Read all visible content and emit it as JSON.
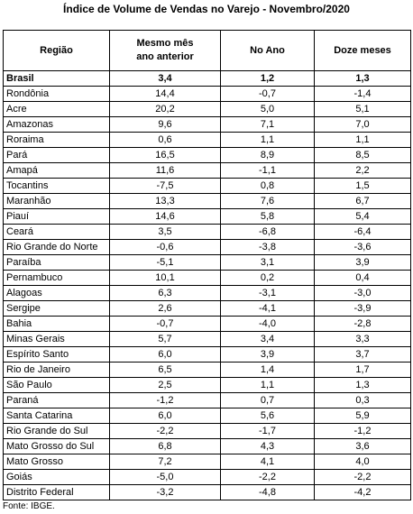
{
  "title": "Índice de Volume de Vendas no Varejo - Novembro/2020",
  "table": {
    "headers": [
      "Região",
      "Mesmo mês ano anterior",
      "No Ano",
      "Doze meses"
    ],
    "rows": [
      [
        "Brasil",
        "3,4",
        "1,2",
        "1,3"
      ],
      [
        "Rondônia",
        "14,4",
        "-0,7",
        "-1,4"
      ],
      [
        "Acre",
        "20,2",
        "5,0",
        "5,1"
      ],
      [
        "Amazonas",
        "9,6",
        "7,1",
        "7,0"
      ],
      [
        "Roraima",
        "0,6",
        "1,1",
        "1,1"
      ],
      [
        "Pará",
        "16,5",
        "8,9",
        "8,5"
      ],
      [
        "Amapá",
        "11,6",
        "-1,1",
        "2,2"
      ],
      [
        "Tocantins",
        "-7,5",
        "0,8",
        "1,5"
      ],
      [
        "Maranhão",
        "13,3",
        "7,6",
        "6,7"
      ],
      [
        "Piauí",
        "14,6",
        "5,8",
        "5,4"
      ],
      [
        "Ceará",
        "3,5",
        "-6,8",
        "-6,4"
      ],
      [
        "Rio Grande do Norte",
        "-0,6",
        "-3,8",
        "-3,6"
      ],
      [
        "Paraíba",
        "-5,1",
        "3,1",
        "3,9"
      ],
      [
        "Pernambuco",
        "10,1",
        "0,2",
        "0,4"
      ],
      [
        "Alagoas",
        "6,3",
        "-3,1",
        "-3,0"
      ],
      [
        "Sergipe",
        "2,6",
        "-4,1",
        "-3,9"
      ],
      [
        "Bahia",
        "-0,7",
        "-4,0",
        "-2,8"
      ],
      [
        "Minas Gerais",
        "5,7",
        "3,4",
        "3,3"
      ],
      [
        "Espírito Santo",
        "6,0",
        "3,9",
        "3,7"
      ],
      [
        "Rio de Janeiro",
        "6,5",
        "1,4",
        "1,7"
      ],
      [
        "São Paulo",
        "2,5",
        "1,1",
        "1,3"
      ],
      [
        "Paraná",
        "-1,2",
        "0,7",
        "0,3"
      ],
      [
        "Santa Catarina",
        "6,0",
        "5,6",
        "5,9"
      ],
      [
        "Rio Grande do Sul",
        "-2,2",
        "-1,7",
        "-1,2"
      ],
      [
        "Mato Grosso do Sul",
        "6,8",
        "4,3",
        "3,6"
      ],
      [
        "Mato Grosso",
        "7,2",
        "4,1",
        "4,0"
      ],
      [
        "Goiás",
        "-5,0",
        "-2,2",
        "-2,2"
      ],
      [
        "Distrito Federal",
        "-3,2",
        "-4,8",
        "-4,2"
      ]
    ]
  },
  "source": "Fonte: IBGE."
}
